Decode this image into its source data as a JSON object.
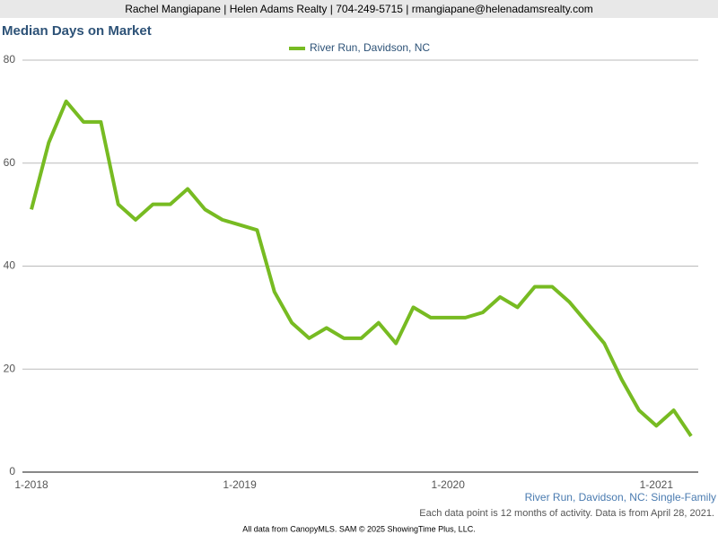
{
  "header": "Rachel Mangiapane | Helen Adams Realty | 704-249-5715 | rmangiapane@helenadamsrealty.com",
  "chart_data": {
    "type": "line",
    "title": "Median Days on Market",
    "categories": [
      "1-2018",
      null,
      null,
      null,
      null,
      null,
      null,
      null,
      null,
      null,
      null,
      null,
      "1-2019",
      null,
      null,
      null,
      null,
      null,
      null,
      null,
      null,
      null,
      null,
      null,
      "1-2020",
      null,
      null,
      null,
      null,
      null,
      null,
      null,
      null,
      null,
      null,
      null,
      "1-2021",
      null,
      null
    ],
    "series": [
      {
        "name": "River Run, Davidson, NC",
        "color": "#77bb22",
        "values": [
          51,
          64,
          72,
          68,
          68,
          52,
          49,
          52,
          52,
          55,
          51,
          49,
          48,
          47,
          35,
          29,
          26,
          28,
          26,
          26,
          29,
          25,
          32,
          30,
          30,
          30,
          31,
          34,
          32,
          36,
          36,
          33,
          29,
          25,
          18,
          12,
          9,
          12,
          7
        ]
      }
    ],
    "ylim": [
      0,
      80
    ],
    "yticks": [
      0,
      20,
      40,
      60,
      80
    ],
    "grid": true,
    "subtitle": "River Run, Davidson, NC: Single-Family",
    "note": "Each data point is 12 months of activity. Data is from April 28, 2021."
  },
  "footer": "All data from CanopyMLS. SAM © 2025 ShowingTime Plus, LLC."
}
